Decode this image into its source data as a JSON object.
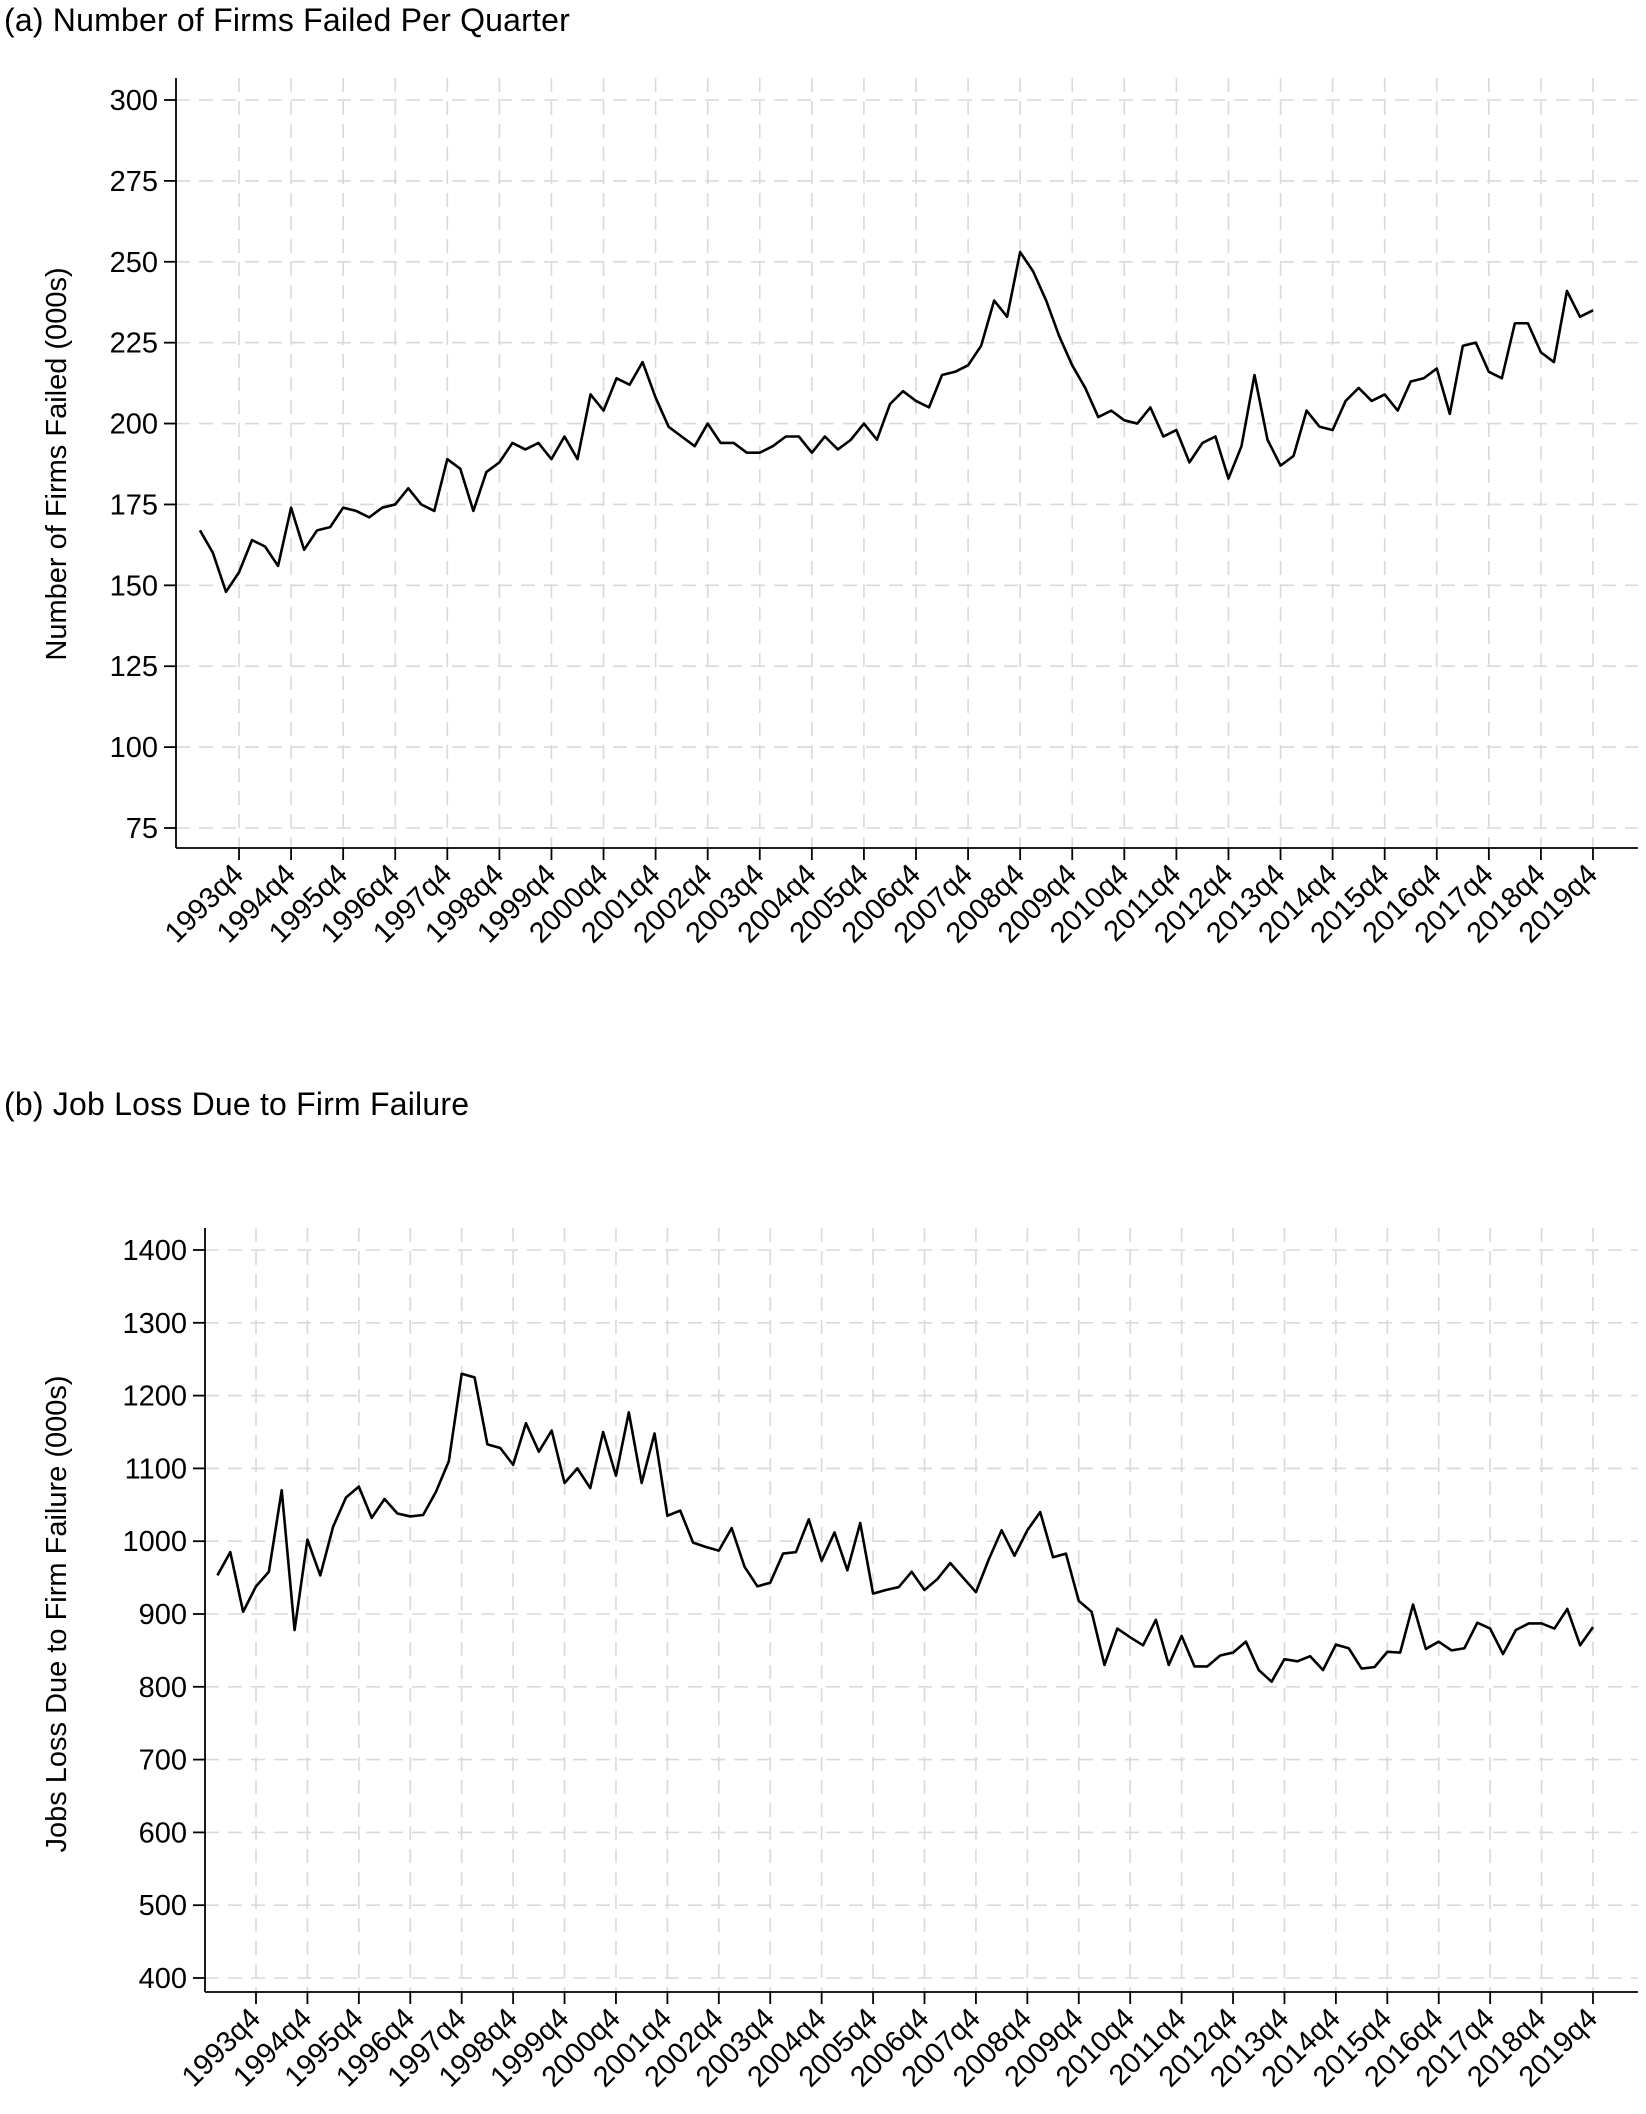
{
  "chart_data": [
    {
      "type": "line",
      "title": "(a) Number of Firms Failed Per Quarter",
      "xlabel": "",
      "ylabel": "Number of Firms Failed (000s)",
      "ylim": [
        75,
        300
      ],
      "yticks": [
        75,
        100,
        125,
        150,
        175,
        200,
        225,
        250,
        275,
        300
      ],
      "xticks": [
        "1993q4",
        "1994q4",
        "1995q4",
        "1996q4",
        "1997q4",
        "1998q4",
        "1999q4",
        "2000q4",
        "2001q4",
        "2002q4",
        "2003q4",
        "2004q4",
        "2005q4",
        "2006q4",
        "2007q4",
        "2008q4",
        "2009q4",
        "2010q4",
        "2011q4",
        "2012q4",
        "2013q4",
        "2014q4",
        "2015q4",
        "2016q4",
        "2017q4",
        "2018q4",
        "2019q4"
      ],
      "x_start": "1993q1",
      "x_end": "2020q1",
      "grid": true,
      "series": [
        {
          "values": [
            167,
            160,
            148,
            154,
            164,
            162,
            156,
            174,
            161,
            167,
            168,
            174,
            173,
            171,
            174,
            175,
            180,
            175,
            173,
            189,
            186,
            173,
            185,
            188,
            194,
            192,
            194,
            189,
            196,
            189,
            209,
            204,
            214,
            212,
            219,
            208,
            199,
            196,
            193,
            200,
            194,
            194,
            191,
            191,
            193,
            196,
            196,
            191,
            196,
            192,
            195,
            200,
            195,
            206,
            210,
            207,
            205,
            215,
            216,
            218,
            224,
            238,
            233,
            253,
            247,
            238,
            227,
            218,
            211,
            202,
            204,
            201,
            200,
            205,
            196,
            198,
            188,
            194,
            196,
            183,
            193,
            215,
            195,
            187,
            190,
            204,
            199,
            198,
            207,
            211,
            207,
            209,
            204,
            213,
            214,
            217,
            203,
            224,
            225,
            216,
            214,
            231,
            231,
            222,
            219,
            241,
            233,
            235
          ]
        }
      ]
    },
    {
      "type": "line",
      "title": "(b) Job Loss Due to Firm Failure",
      "xlabel": "",
      "ylabel": "Jobs Loss Due to Firm Failure (000s)",
      "ylim": [
        400,
        1400
      ],
      "yticks": [
        400,
        500,
        600,
        700,
        800,
        900,
        1000,
        1100,
        1200,
        1300,
        1400
      ],
      "xticks": [
        "1993q4",
        "1994q4",
        "1995q4",
        "1996q4",
        "1997q4",
        "1998q4",
        "1999q4",
        "2000q4",
        "2001q4",
        "2002q4",
        "2003q4",
        "2004q4",
        "2005q4",
        "2006q4",
        "2007q4",
        "2008q4",
        "2009q4",
        "2010q4",
        "2011q4",
        "2012q4",
        "2013q4",
        "2014q4",
        "2015q4",
        "2016q4",
        "2017q4",
        "2018q4",
        "2019q4"
      ],
      "x_start": "1993q1",
      "x_end": "2020q1",
      "grid": true,
      "series": [
        {
          "values": [
            953,
            985,
            903,
            938,
            958,
            1070,
            878,
            1002,
            953,
            1020,
            1060,
            1075,
            1032,
            1058,
            1038,
            1034,
            1036,
            1068,
            1110,
            1230,
            1225,
            1133,
            1128,
            1105,
            1162,
            1123,
            1152,
            1080,
            1100,
            1073,
            1150,
            1090,
            1177,
            1080,
            1148,
            1035,
            1042,
            998,
            992,
            987,
            1018,
            965,
            938,
            943,
            983,
            985,
            1030,
            973,
            1012,
            960,
            1025,
            928,
            933,
            937,
            958,
            933,
            948,
            970,
            950,
            930,
            975,
            1015,
            980,
            1015,
            1040,
            978,
            983,
            918,
            903,
            830,
            880,
            868,
            857,
            892,
            830,
            870,
            828,
            828,
            843,
            847,
            862,
            823,
            807,
            838,
            835,
            842,
            823,
            858,
            853,
            825,
            827,
            848,
            847,
            913,
            852,
            862,
            850,
            853,
            888,
            880,
            845,
            878,
            887,
            887,
            880,
            907,
            857,
            882
          ]
        }
      ]
    }
  ]
}
